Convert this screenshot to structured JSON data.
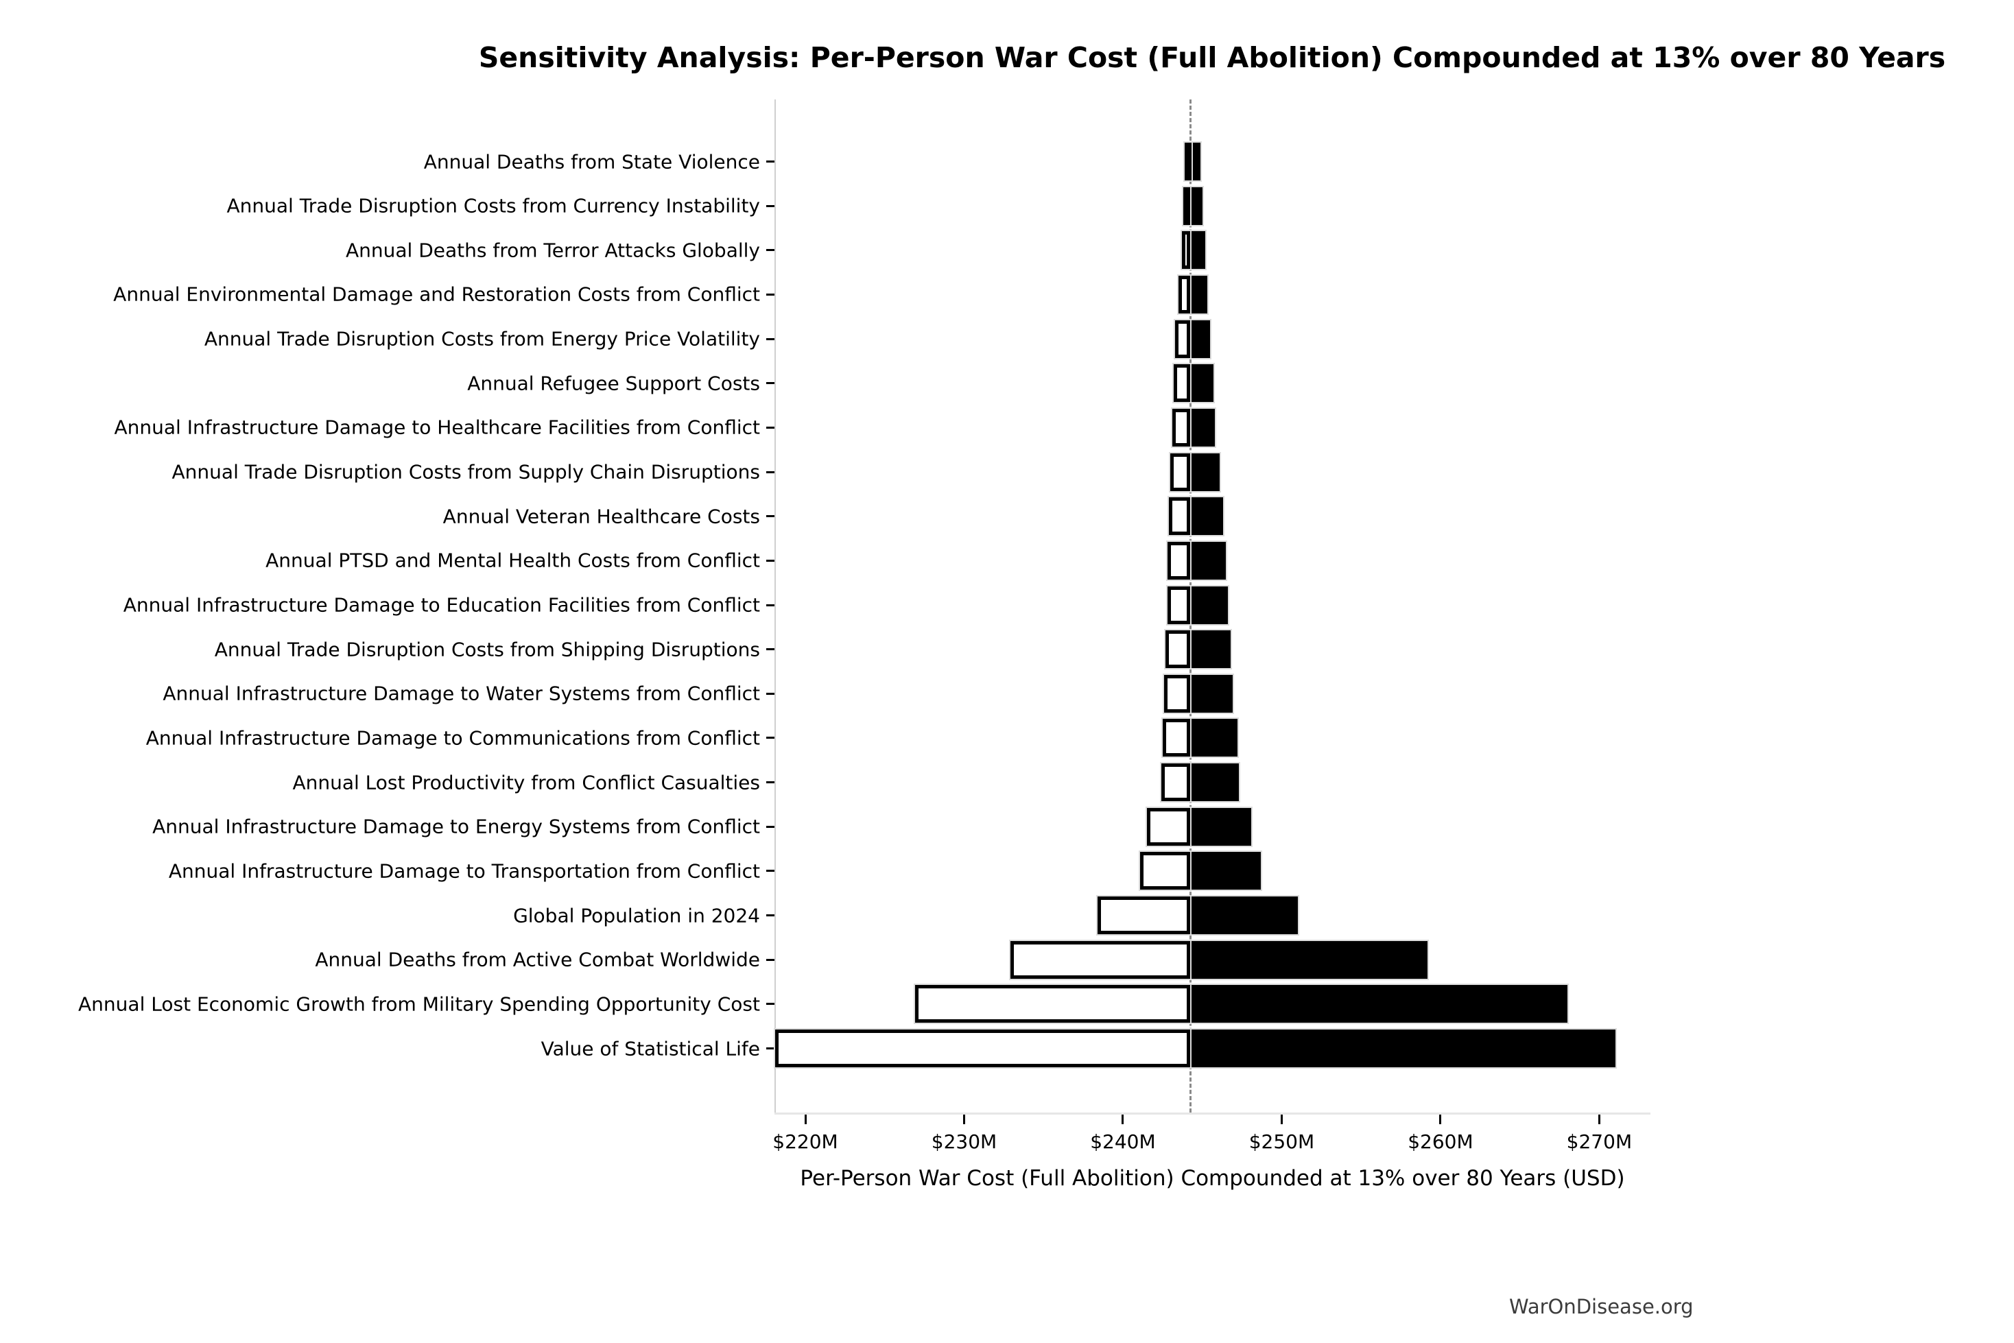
{
  "title": "Sensitivity Analysis: Per-Person War Cost (Full Abolition) Compounded at 13% over 80 Years",
  "footer": "WarOnDisease.org",
  "chart_data": {
    "type": "bar",
    "subtype": "tornado-sensitivity",
    "orientation": "horizontal",
    "title": "Sensitivity Analysis: Per-Person War Cost (Full Abolition) Compounded at 13% over 80 Years",
    "xlabel": "Per-Person War Cost (Full Abolition) Compounded at 13% over 80 Years (USD)",
    "ylabel": "",
    "units": "million USD",
    "baseline_value": 244.25,
    "xlim": [
      218.0,
      273.2
    ],
    "grid": false,
    "legend": null,
    "x_ticks": [
      {
        "value": 220,
        "label": "$220M"
      },
      {
        "value": 230,
        "label": "$230M"
      },
      {
        "value": 240,
        "label": "$240M"
      },
      {
        "value": 250,
        "label": "$250M"
      },
      {
        "value": 260,
        "label": "$260M"
      },
      {
        "value": 270,
        "label": "$270M"
      }
    ],
    "colors": {
      "low_fill": "#ffffff",
      "low_edge": "#000000",
      "high_fill": "#000000",
      "baseline_line": "#8a8a8a",
      "axis_spine": "#cfcfcf",
      "text": "#000000",
      "footer_text": "#3c3c3c"
    },
    "parameters": [
      {
        "label": "Annual Deaths from State Violence",
        "low": 243.9,
        "high": 244.9
      },
      {
        "label": "Annual Trade Disruption Costs from Currency Instability",
        "low": 243.8,
        "high": 245.0
      },
      {
        "label": "Annual Deaths from Terror Attacks Globally",
        "low": 243.7,
        "high": 245.2
      },
      {
        "label": "Annual Environmental Damage and Restoration Costs from Conflict",
        "low": 243.5,
        "high": 245.3
      },
      {
        "label": "Annual Trade Disruption Costs from Energy Price Volatility",
        "low": 243.3,
        "high": 245.5
      },
      {
        "label": "Annual Refugee Support Costs",
        "low": 243.2,
        "high": 245.7
      },
      {
        "label": "Annual Infrastructure Damage to Healthcare Facilities from Conflict",
        "low": 243.1,
        "high": 245.8
      },
      {
        "label": "Annual Trade Disruption Costs from Supply Chain Disruptions",
        "low": 243.0,
        "high": 246.1
      },
      {
        "label": "Annual Veteran Healthcare Costs",
        "low": 242.9,
        "high": 246.3
      },
      {
        "label": "Annual PTSD and Mental Health Costs from Conflict",
        "low": 242.8,
        "high": 246.5
      },
      {
        "label": "Annual Infrastructure Damage to Education Facilities from Conflict",
        "low": 242.8,
        "high": 246.6
      },
      {
        "label": "Annual Trade Disruption Costs from Shipping Disruptions",
        "low": 242.7,
        "high": 246.8
      },
      {
        "label": "Annual Infrastructure Damage to Water Systems from Conflict",
        "low": 242.6,
        "high": 246.9
      },
      {
        "label": "Annual Infrastructure Damage to Communications from Conflict",
        "low": 242.5,
        "high": 247.2
      },
      {
        "label": "Annual Lost Productivity from Conflict Casualties",
        "low": 242.4,
        "high": 247.3
      },
      {
        "label": "Annual Infrastructure Damage to Energy Systems from Conflict",
        "low": 241.5,
        "high": 248.1
      },
      {
        "label": "Annual Infrastructure Damage to Transportation from Conflict",
        "low": 241.1,
        "high": 248.7
      },
      {
        "label": "Global Population in 2024",
        "low": 238.4,
        "high": 251.0
      },
      {
        "label": "Annual Deaths from Active Combat Worldwide",
        "low": 232.9,
        "high": 259.2
      },
      {
        "label": "Annual Lost Economic Growth from Military Spending Opportunity Cost",
        "low": 226.9,
        "high": 268.0
      },
      {
        "label": "Value of Statistical Life",
        "low": 218.1,
        "high": 271.0
      }
    ]
  }
}
